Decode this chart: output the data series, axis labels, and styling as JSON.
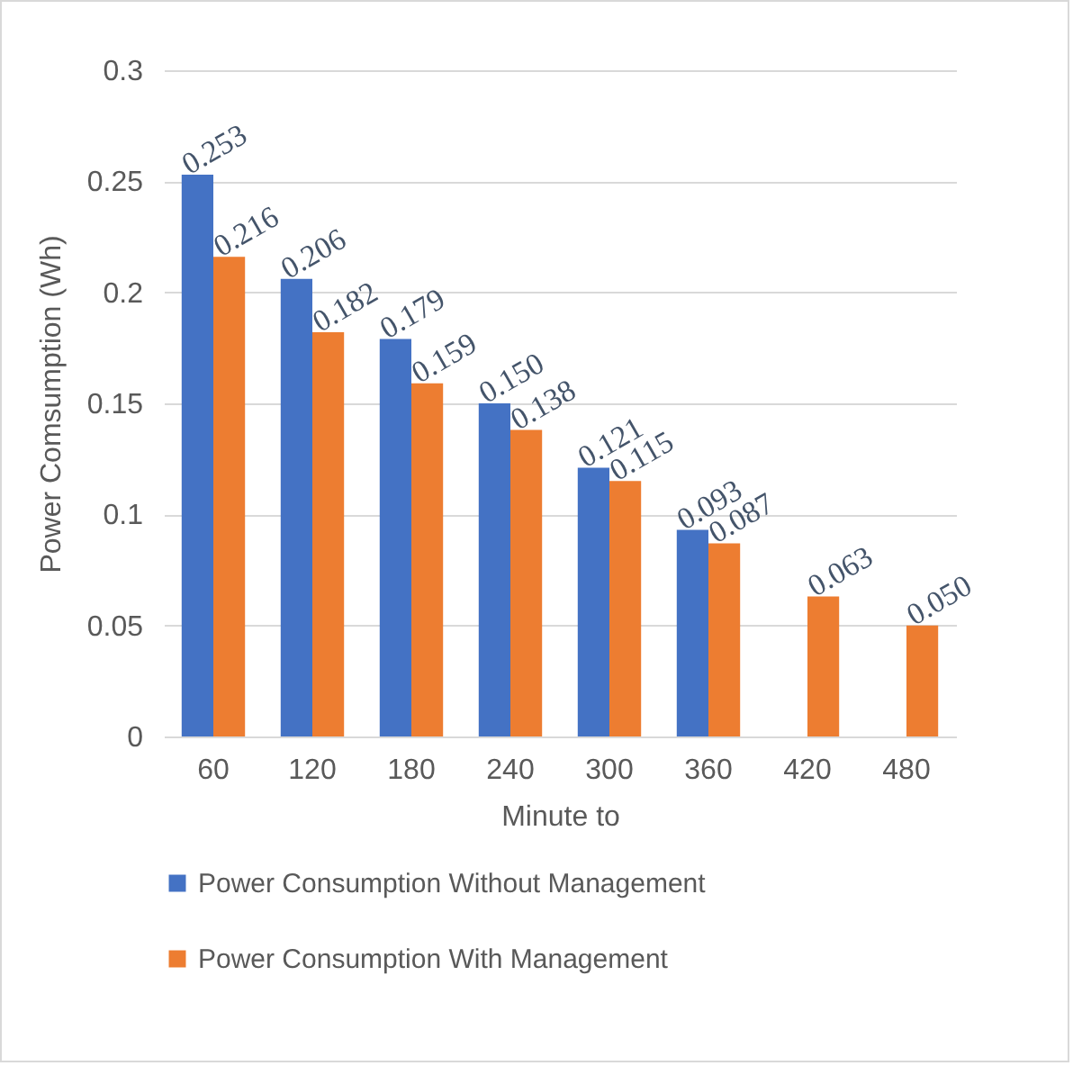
{
  "chart_data": {
    "type": "bar",
    "xlabel": "Minute to",
    "ylabel": "Power Comsumption (Wh)",
    "categories": [
      "60",
      "120",
      "180",
      "240",
      "300",
      "360",
      "420",
      "480"
    ],
    "series": [
      {
        "name": "Power Consumption Without Management",
        "color": "#4472c4",
        "values": [
          0.253,
          0.206,
          0.179,
          0.15,
          0.121,
          0.093,
          null,
          null
        ],
        "value_labels": [
          "0.253",
          "0.206",
          "0.179",
          "0.150",
          "0.121",
          "0.093",
          null,
          null
        ]
      },
      {
        "name": "Power Consumption With Management",
        "color": "#ed7d31",
        "values": [
          0.216,
          0.182,
          0.159,
          0.138,
          0.115,
          0.087,
          0.063,
          0.05
        ],
        "value_labels": [
          "0.216",
          "0.182",
          "0.159",
          "0.138",
          "0.115",
          "0.087",
          "0.063",
          "0.050"
        ]
      }
    ],
    "ylim": [
      0,
      0.3
    ],
    "yticks": [
      0,
      0.05,
      0.1,
      0.15,
      0.2,
      0.25,
      0.3
    ],
    "grid": "y",
    "legend": "bottom"
  }
}
